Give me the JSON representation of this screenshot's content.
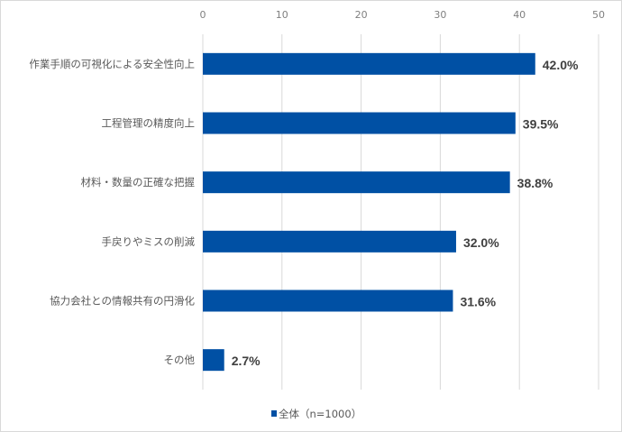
{
  "chart_data": {
    "type": "bar",
    "orientation": "horizontal",
    "categories": [
      "作業手順の可視化による安全性向上",
      "工程管理の精度向上",
      "材料・数量の正確な把握",
      "手戻りやミスの削減",
      "協力会社との情報共有の円滑化",
      "その他"
    ],
    "series": [
      {
        "name": "全体（n=1000）",
        "values": [
          42.0,
          39.5,
          38.8,
          32.0,
          31.6,
          2.7
        ],
        "color": "#0050A4"
      }
    ],
    "data_labels": [
      "42.0%",
      "39.5%",
      "38.8%",
      "32.0%",
      "31.6%",
      "2.7%"
    ],
    "xlim": [
      0,
      50
    ],
    "xticks": [
      0,
      10,
      20,
      30,
      40,
      50
    ],
    "xaxis_position": "top",
    "grid": true,
    "legend_position": "bottom",
    "title": "",
    "xlabel": "",
    "ylabel": ""
  }
}
